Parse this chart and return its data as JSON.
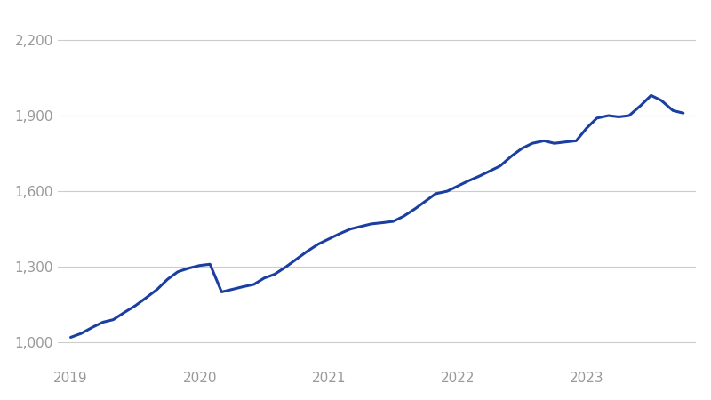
{
  "title": "",
  "xlabel": "",
  "ylabel": "",
  "line_color": "#1a3fa0",
  "line_width": 2.2,
  "background_color": "#ffffff",
  "grid_color": "#cccccc",
  "tick_label_color": "#999999",
  "ylim": [
    900,
    2300
  ],
  "yticks": [
    1000,
    1300,
    1600,
    1900,
    2200
  ],
  "xtick_labels": [
    "2019",
    "2020",
    "2021",
    "2022",
    "2023"
  ],
  "x": [
    0,
    0.08,
    0.17,
    0.25,
    0.33,
    0.42,
    0.5,
    0.58,
    0.67,
    0.75,
    0.83,
    0.92,
    1.0,
    1.08,
    1.17,
    1.25,
    1.33,
    1.42,
    1.5,
    1.58,
    1.67,
    1.75,
    1.83,
    1.92,
    2.0,
    2.08,
    2.17,
    2.25,
    2.33,
    2.42,
    2.5,
    2.58,
    2.67,
    2.75,
    2.83,
    2.92,
    3.0,
    3.08,
    3.17,
    3.25,
    3.33,
    3.42,
    3.5,
    3.58,
    3.67,
    3.75,
    3.83,
    3.92,
    4.0,
    4.08,
    4.17,
    4.25,
    4.33,
    4.42,
    4.5,
    4.58,
    4.67,
    4.75
  ],
  "y": [
    1020,
    1035,
    1060,
    1080,
    1090,
    1120,
    1145,
    1175,
    1210,
    1250,
    1280,
    1295,
    1305,
    1310,
    1200,
    1210,
    1220,
    1230,
    1255,
    1270,
    1300,
    1330,
    1360,
    1390,
    1410,
    1430,
    1450,
    1460,
    1470,
    1475,
    1480,
    1500,
    1530,
    1560,
    1590,
    1600,
    1620,
    1640,
    1660,
    1680,
    1700,
    1740,
    1770,
    1790,
    1800,
    1790,
    1795,
    1800,
    1850,
    1890,
    1900,
    1895,
    1900,
    1940,
    1980,
    1960,
    1920,
    1910
  ]
}
